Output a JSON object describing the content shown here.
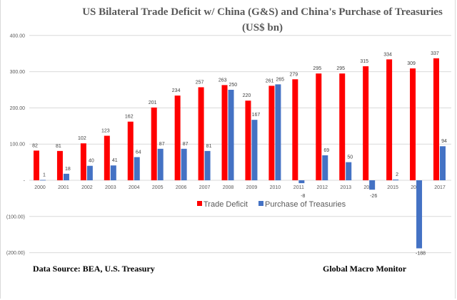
{
  "chart_data": {
    "type": "bar",
    "title_line1": "US Bilateral Trade Deficit w/ China (G&S) and China's Purchase of Treasuries",
    "title_line2": "(US$ bn)",
    "categories": [
      "2000",
      "2001",
      "2002",
      "2003",
      "2004",
      "2005",
      "2006",
      "2007",
      "2008",
      "2009",
      "2010",
      "2011",
      "2012",
      "2013",
      "2014",
      "2015",
      "2016",
      "2017"
    ],
    "series": [
      {
        "name": "Trade Deficit",
        "color": "#ff0000",
        "values": [
          82,
          81,
          102,
          123,
          162,
          201,
          234,
          257,
          263,
          220,
          261,
          279,
          295,
          295,
          315,
          334,
          309,
          337
        ]
      },
      {
        "name": "Purchase of Treasuries",
        "color": "#4472c4",
        "values": [
          1,
          18,
          40,
          41,
          64,
          87,
          87,
          81,
          250,
          167,
          265,
          -8,
          69,
          50,
          -26,
          2,
          -188,
          94
        ]
      }
    ],
    "ylim": [
      -200,
      400
    ],
    "yticks": [
      400,
      300,
      200,
      100,
      0,
      -100,
      -200
    ],
    "ytick_labels": [
      "400.00",
      "300.00",
      "200.00",
      "100.00",
      "-",
      "(100.00)",
      "(200.00)"
    ],
    "grid": true,
    "legend": "bottom"
  },
  "footer": {
    "source": "Data Source:   BEA, U.S. Treasury",
    "brand": "Global Macro Monitor"
  }
}
